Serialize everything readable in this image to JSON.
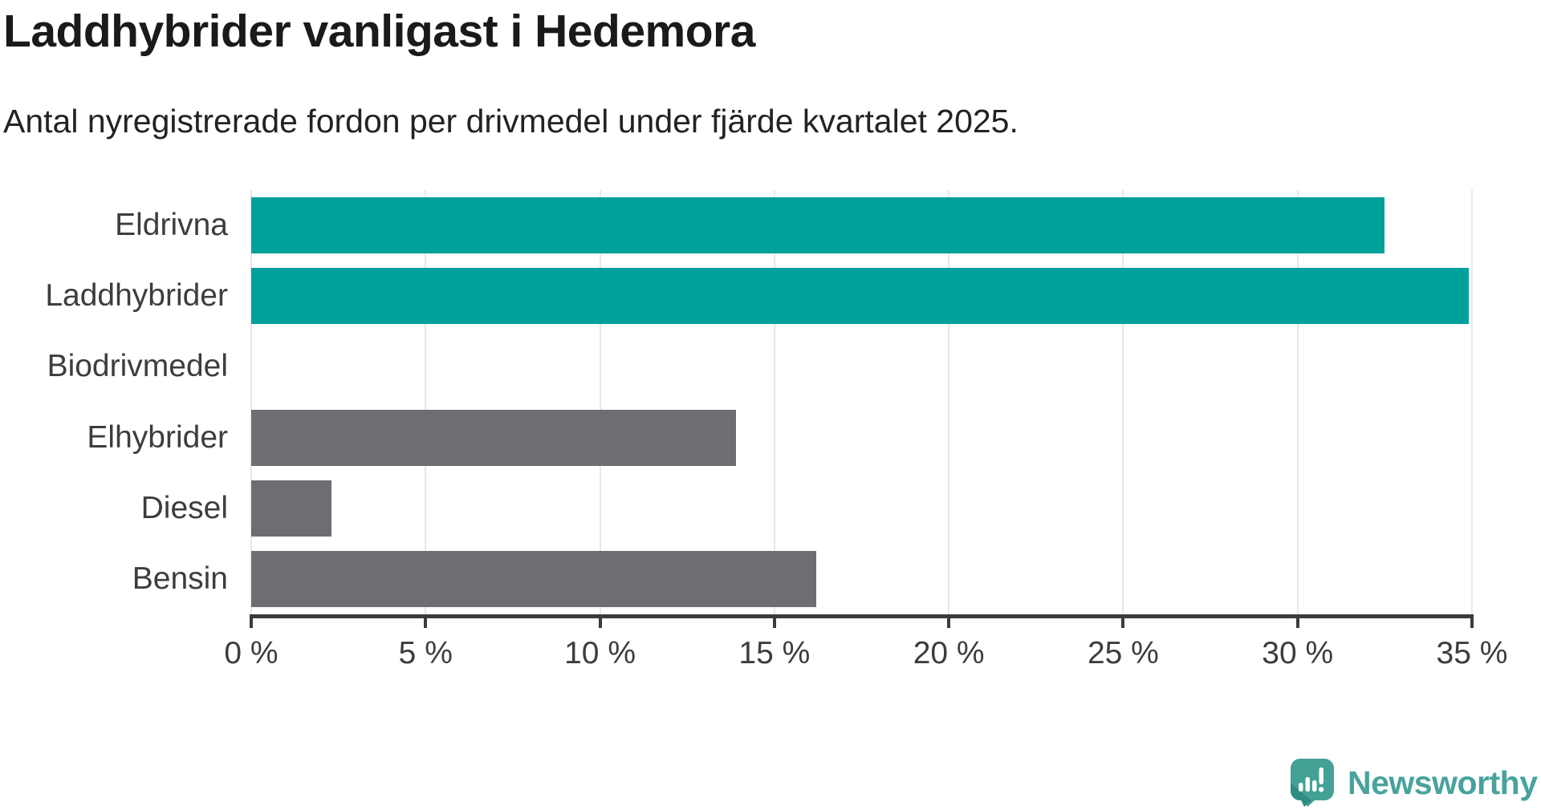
{
  "header": {
    "title": "Laddhybrider vanligast i Hedemora",
    "subtitle": "Antal nyregistrerade fordon per drivmedel under fjärde kvartalet 2025."
  },
  "colors": {
    "accent_teal": "#00a09b",
    "neutral_gray": "#6d6d72",
    "gridline": "#e7e7e9",
    "axis": "#3b3b3b",
    "label_text": "#3d3d3d",
    "logo_teal": "#43a195",
    "logo_teal_dark": "#2f8c83",
    "logo_text_teal": "#48a39c"
  },
  "chart_data": {
    "type": "bar",
    "orientation": "horizontal",
    "title": "Laddhybrider vanligast i Hedemora",
    "subtitle": "Antal nyregistrerade fordon per drivmedel under fjärde kvartalet 2025.",
    "categories": [
      "Eldrivna",
      "Laddhybrider",
      "Biodrivmedel",
      "Elhybrider",
      "Diesel",
      "Bensin"
    ],
    "values": [
      32.5,
      34.9,
      0,
      13.9,
      2.3,
      16.2
    ],
    "bar_colors": [
      "#00a09b",
      "#00a09b",
      "none",
      "#6d6d72",
      "#6d6d72",
      "#6d6d72"
    ],
    "xlabel": "",
    "ylabel": "",
    "xlim": [
      0,
      35
    ],
    "unit": "%",
    "grid": "vertical",
    "legend": "none",
    "ticks": [
      {
        "v": 0,
        "label": "0 %"
      },
      {
        "v": 5,
        "label": "5 %"
      },
      {
        "v": 10,
        "label": "10 %"
      },
      {
        "v": 15,
        "label": "15 %"
      },
      {
        "v": 20,
        "label": "20 %"
      },
      {
        "v": 25,
        "label": "25 %"
      },
      {
        "v": 30,
        "label": "30 %"
      },
      {
        "v": 35,
        "label": "35 %"
      }
    ]
  },
  "footer": {
    "brand": "Newsworthy"
  }
}
